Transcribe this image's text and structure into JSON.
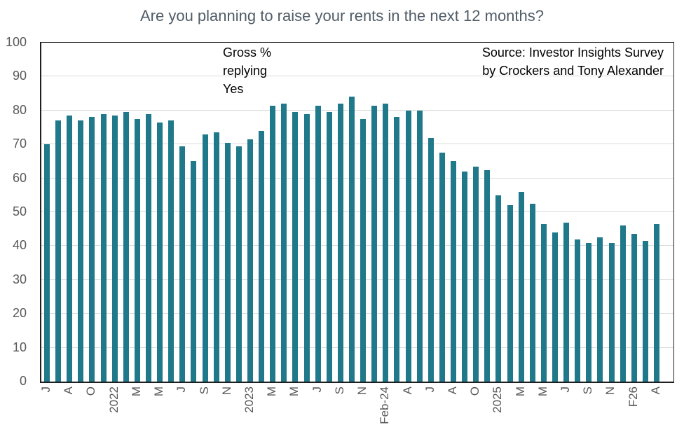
{
  "title": "Are you planning to raise your rents in the next 12 months?",
  "annotation": {
    "lines": [
      "Gross %",
      "replying",
      "Yes"
    ]
  },
  "source": {
    "lines": [
      "Source: Investor Insights Survey",
      "by Crockers and Tony Alexander"
    ]
  },
  "colors": {
    "bar": "#20798A",
    "gridline": "#D9D9D9",
    "frame": "#1F1F1F",
    "title_text": "#505C66",
    "axis_text": "#595959",
    "note_text": "#000000"
  },
  "chart_data": {
    "type": "bar",
    "title": "Are you planning to raise your rents in the next 12 months?",
    "xlabel": "",
    "ylabel": "Gross % replying Yes",
    "ylim": [
      0,
      100
    ],
    "grid": true,
    "legend": "none",
    "yticks": [
      0,
      10,
      20,
      30,
      40,
      50,
      60,
      70,
      80,
      90,
      100
    ],
    "x_labels": [
      "J",
      "",
      "A",
      "",
      "O",
      "",
      "2022",
      "",
      "M",
      "",
      "M",
      "",
      "J",
      "",
      "S",
      "",
      "N",
      "",
      "2023",
      "",
      "M",
      "",
      "M",
      "",
      "J",
      "",
      "S",
      "",
      "N",
      "",
      "Feb-24",
      "",
      "A",
      "",
      "J",
      "",
      "A",
      "",
      "O",
      "",
      "2025",
      "",
      "M",
      "",
      "M",
      "",
      "J",
      "",
      "S",
      "",
      "N",
      "",
      "F26",
      "",
      "A",
      ""
    ],
    "values": [
      70,
      77,
      78.5,
      77,
      78,
      79,
      78.5,
      79.5,
      77.5,
      79,
      76.5,
      77,
      69.5,
      65,
      73,
      73.5,
      70.5,
      69.5,
      71.5,
      74,
      81.5,
      82,
      79.5,
      79,
      81.5,
      79.5,
      82,
      84,
      77.5,
      81.5,
      82,
      78,
      80,
      80,
      72,
      67.5,
      65,
      62,
      63.5,
      62.5,
      55,
      52,
      56,
      52.5,
      46.5,
      44,
      47,
      42,
      41,
      42.5,
      41,
      46,
      43.5,
      41.5,
      46.5,
      null
    ]
  }
}
